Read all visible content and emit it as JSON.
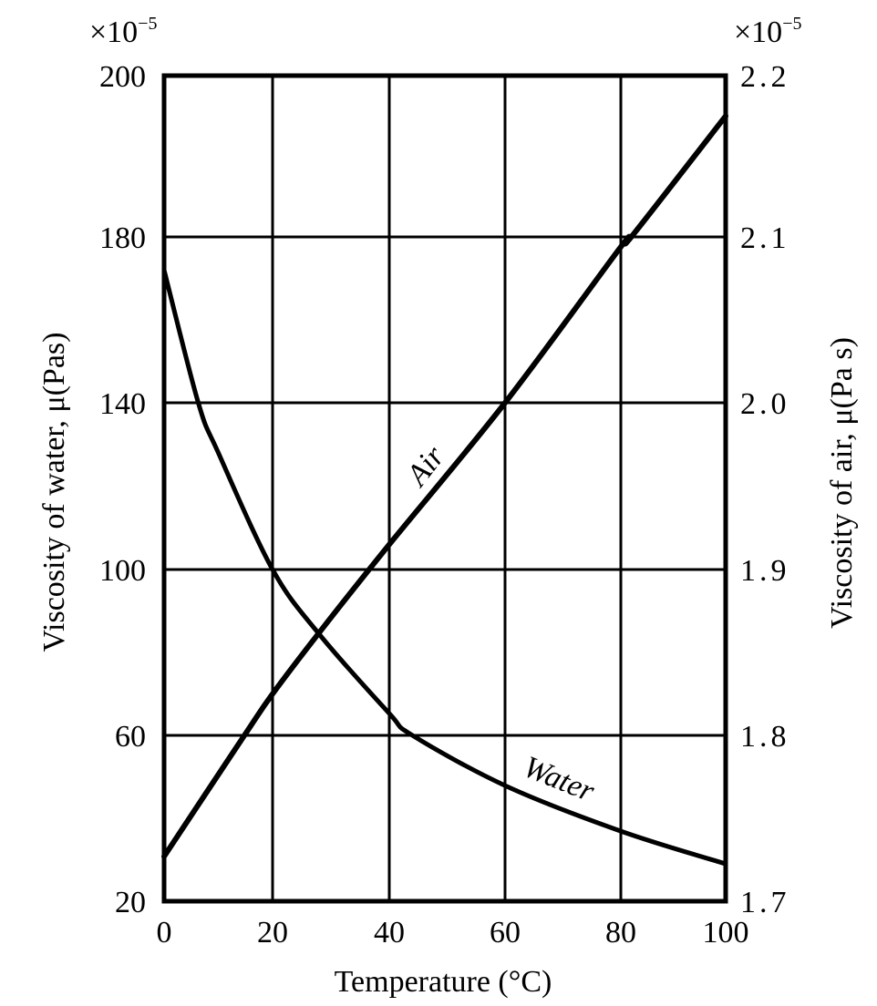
{
  "chart_data": {
    "type": "line",
    "title": "",
    "xlabel": "Temperature (°C)",
    "ylabel": "Viscosity of water, μ(Pas)",
    "ylabel_right": "Viscosity of air, μ(Pa s)",
    "xlim": [
      0,
      100
    ],
    "ylim": [
      20,
      200
    ],
    "ylim_right": [
      1.7,
      2.2
    ],
    "y_multiplier": "×10⁻⁵",
    "y_multiplier_right": "×10⁻⁵",
    "grid": true,
    "x_ticks": [
      "0",
      "20",
      "40",
      "60",
      "80",
      "100"
    ],
    "y_ticks_left": [
      "20",
      "60",
      "100",
      "140",
      "180",
      "200"
    ],
    "y_ticks_right": [
      "1.7",
      "1.8",
      "1.9",
      "2.0",
      "2.1",
      "2.2"
    ],
    "series": [
      {
        "name": "Water",
        "axis": "left",
        "x": [
          0,
          6.3,
          10,
          20,
          28,
          40,
          44,
          60,
          80,
          100
        ],
        "values": [
          172,
          140,
          128,
          100,
          84.4,
          65.3,
          60,
          47.9,
          36.9,
          29.0
        ]
      },
      {
        "name": "Air",
        "axis": "right",
        "x": [
          0,
          14.8,
          20,
          28,
          40,
          60,
          80,
          82,
          100
        ],
        "values": [
          1.727,
          1.8,
          1.825,
          1.862,
          1.915,
          2.0,
          2.094,
          2.1,
          2.175
        ]
      }
    ],
    "annotations": [
      "Air",
      "Water"
    ]
  },
  "labels": {
    "x_axis_title": "Temperature (°C)",
    "y_axis_left_title": "Viscosity of water, μ(Pas)",
    "y_axis_right_title": "Viscosity of air, μ(Pa s)",
    "mult_base": "×10",
    "mult_exp": "−5",
    "series_air": "Air",
    "series_water": "Water"
  }
}
